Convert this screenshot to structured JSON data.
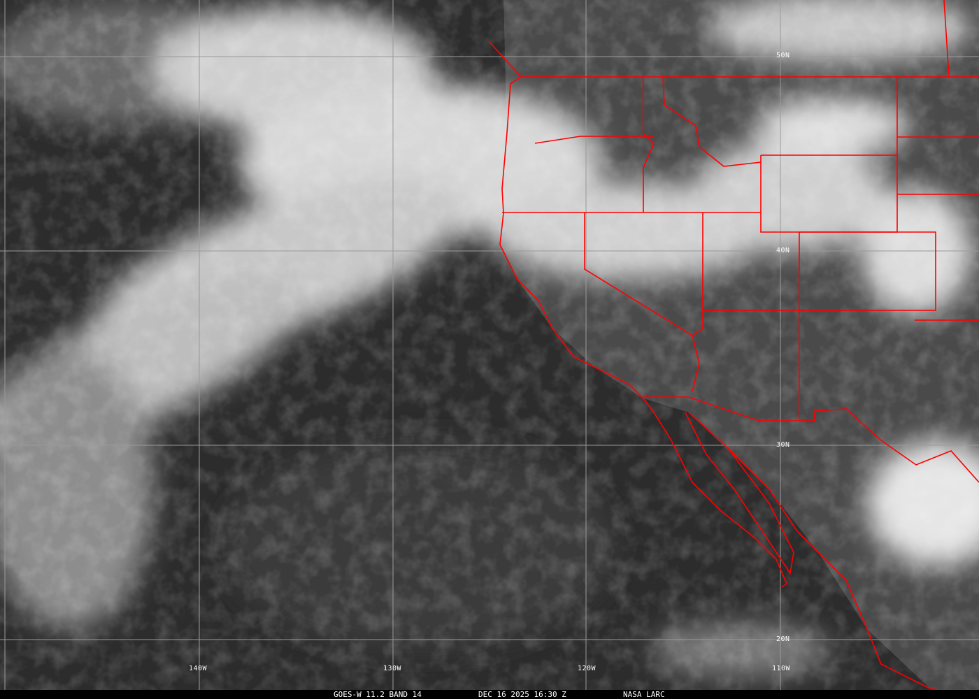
{
  "caption": {
    "satellite": "GOES-W 11.2 BAND 14",
    "datetime": "DEC 16 2025 16:30 Z",
    "source": "NASA LARC"
  },
  "grid": {
    "longitudes": [
      "140W",
      "130W",
      "120W",
      "110W"
    ],
    "latitudes": [
      "50N",
      "40N",
      "30N",
      "20N"
    ]
  },
  "colors": {
    "borders": "#ff0000",
    "grid": "#9a9a9a",
    "ocean": "#2e2e2e",
    "clouds": "#ffffff"
  }
}
